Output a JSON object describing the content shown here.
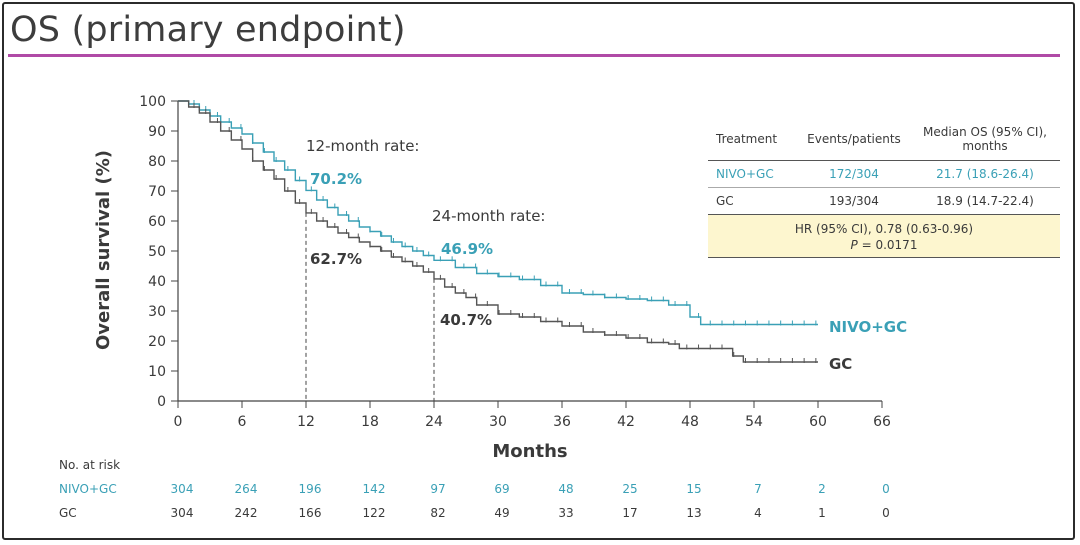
{
  "title": "OS (primary endpoint)",
  "colors": {
    "nivo": "#3aa0b6",
    "gc": "#555555",
    "accent_rule": "#b04aa6",
    "hr_box": "#fdf6cf"
  },
  "chart_data": {
    "type": "line",
    "title": "OS (primary endpoint)",
    "xlabel": "Months",
    "ylabel": "Overall survival (%)",
    "xlim": [
      0,
      66
    ],
    "ylim": [
      0,
      100
    ],
    "xticks": [
      0,
      6,
      12,
      18,
      24,
      30,
      36,
      42,
      48,
      54,
      60,
      66
    ],
    "yticks": [
      0,
      10,
      20,
      30,
      40,
      50,
      60,
      70,
      80,
      90,
      100
    ],
    "series": [
      {
        "name": "NIVO+GC",
        "x": [
          0,
          1,
          2,
          3,
          4,
          5,
          6,
          7,
          8,
          9,
          10,
          11,
          12,
          13,
          14,
          15,
          16,
          17,
          18,
          19,
          20,
          21,
          22,
          23,
          24,
          26,
          28,
          30,
          32,
          34,
          36,
          38,
          40,
          42,
          44,
          46,
          48,
          49,
          52,
          56,
          60
        ],
        "y": [
          100,
          99,
          97,
          95,
          93,
          91,
          89,
          86,
          83,
          80,
          77,
          73.5,
          70.2,
          67,
          64.5,
          62,
          60,
          58,
          56.5,
          55,
          53,
          51.5,
          50,
          48.5,
          46.9,
          44.5,
          42.5,
          41.5,
          40.5,
          38.5,
          36,
          35.5,
          34.5,
          34,
          33.5,
          32,
          28,
          25.5,
          25.5,
          25.5,
          25.5
        ]
      },
      {
        "name": "GC",
        "x": [
          0,
          1,
          2,
          3,
          4,
          5,
          6,
          7,
          8,
          9,
          10,
          11,
          12,
          13,
          14,
          15,
          16,
          17,
          18,
          19,
          20,
          21,
          22,
          23,
          24,
          25,
          26,
          27,
          28,
          30,
          32,
          34,
          36,
          38,
          40,
          42,
          44,
          46,
          47,
          49,
          51,
          52,
          53,
          56,
          60
        ],
        "y": [
          100,
          98,
          96,
          93,
          90,
          87,
          84,
          80,
          77,
          74,
          70,
          66,
          62.7,
          60,
          58,
          56,
          54.5,
          53,
          51.5,
          50,
          48,
          46.5,
          45,
          43,
          40.7,
          38,
          36,
          34.5,
          32,
          29,
          28,
          26.5,
          25,
          23,
          22,
          21,
          19.5,
          19,
          17.5,
          17.5,
          17.5,
          15,
          13,
          13,
          13
        ]
      }
    ],
    "annotations": {
      "m12_label": "12-month rate:",
      "m12_nivo": "70.2%",
      "m12_gc": "62.7%",
      "m24_label": "24-month rate:",
      "m24_nivo": "46.9%",
      "m24_gc": "40.7%",
      "nivo_end_label": "NIVO+GC",
      "gc_end_label": "GC"
    }
  },
  "table": {
    "headers": [
      "Treatment",
      "Events/patients",
      "Median OS (95% CI), months"
    ],
    "rows": [
      [
        "NIVO+GC",
        "172/304",
        "21.7 (18.6-26.4)"
      ],
      [
        "GC",
        "193/304",
        "18.9 (14.7-22.4)"
      ]
    ],
    "hr_line": "HR (95% CI), 0.78 (0.63-0.96)",
    "p_label": "P",
    "p_value": " = 0.0171"
  },
  "risk": {
    "title": "No. at risk",
    "nivo_label": "NIVO+GC",
    "gc_label": "GC",
    "nivo": [
      "304",
      "264",
      "196",
      "142",
      "97",
      "69",
      "48",
      "25",
      "15",
      "7",
      "2",
      "0"
    ],
    "gc": [
      "304",
      "242",
      "166",
      "122",
      "82",
      "49",
      "33",
      "17",
      "13",
      "4",
      "1",
      "0"
    ]
  }
}
